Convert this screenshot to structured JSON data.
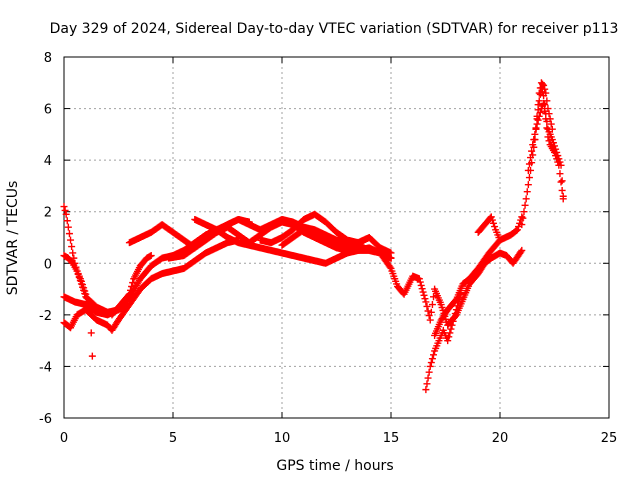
{
  "chart_data": {
    "type": "scatter",
    "title": "Day 329 of 2024, Sidereal Day-to-day VTEC variation (SDTVAR) for receiver p113",
    "xlabel": "GPS time / hours",
    "ylabel": "SDTVAR / TECUs",
    "xlim": [
      0,
      25
    ],
    "ylim": [
      -6,
      8
    ],
    "xticks": [
      0,
      5,
      10,
      15,
      20,
      25
    ],
    "yticks": [
      -6,
      -4,
      -2,
      0,
      2,
      4,
      6,
      8
    ],
    "grid": true,
    "marker": "+",
    "series": [
      {
        "name": "SDTVAR",
        "color": "#ff0000",
        "tracks": [
          {
            "x": [
              0.0,
              0.1,
              0.2,
              0.3,
              0.4,
              0.5,
              0.6,
              0.8,
              1.0,
              1.2,
              1.3
            ],
            "y": [
              2.2,
              1.9,
              1.4,
              0.9,
              0.4,
              0.0,
              -0.3,
              -0.7,
              -1.2,
              -1.8,
              -3.6
            ]
          },
          {
            "x": [
              0.0,
              0.2,
              0.4,
              0.6,
              0.8,
              1.0,
              1.5,
              2.0,
              2.5,
              2.9
            ],
            "y": [
              0.3,
              0.2,
              0.0,
              -0.3,
              -0.8,
              -1.3,
              -1.7,
              -1.9,
              -1.8,
              -1.6
            ]
          },
          {
            "x": [
              0.0,
              0.3,
              0.6,
              1.0,
              1.5,
              2.0,
              2.2,
              2.5,
              3.0,
              3.5,
              4.0,
              4.5,
              5.0,
              5.5,
              6.0,
              6.5,
              7.0,
              7.5,
              8.0
            ],
            "y": [
              -2.3,
              -2.5,
              -2.0,
              -1.8,
              -2.2,
              -2.4,
              -2.6,
              -2.2,
              -1.6,
              -1.0,
              -0.6,
              -0.4,
              -0.3,
              -0.2,
              0.1,
              0.4,
              0.6,
              0.8,
              0.9
            ]
          },
          {
            "x": [
              0.0,
              0.5,
              1.0,
              1.5,
              2.0,
              2.5,
              3.0,
              3.5,
              4.0,
              4.5,
              5.0,
              5.5,
              6.0,
              6.5,
              7.0,
              7.5,
              8.0,
              8.5
            ],
            "y": [
              -1.3,
              -1.5,
              -1.6,
              -1.9,
              -2.0,
              -1.8,
              -1.3,
              -0.6,
              -0.1,
              0.2,
              0.3,
              0.5,
              0.8,
              1.1,
              1.3,
              1.5,
              1.7,
              1.6
            ]
          },
          {
            "x": [
              2.2,
              2.6,
              3.0,
              3.2,
              3.5,
              3.8,
              4.0
            ],
            "y": [
              -2.0,
              -1.6,
              -1.2,
              -0.6,
              -0.1,
              0.2,
              0.3
            ]
          },
          {
            "x": [
              3.0,
              3.5,
              4.0,
              4.5,
              5.0,
              5.5,
              6.0,
              6.5,
              7.0,
              7.5,
              8.0,
              8.5,
              9.0,
              9.5,
              10.0,
              10.5,
              11.0,
              11.5,
              12.0,
              12.5,
              13.0,
              13.5,
              14.0,
              14.5,
              15.0
            ],
            "y": [
              0.8,
              1.0,
              1.2,
              1.5,
              1.2,
              0.9,
              0.6,
              0.9,
              1.2,
              1.4,
              1.1,
              0.8,
              1.1,
              1.4,
              1.6,
              1.5,
              1.2,
              1.0,
              0.8,
              0.6,
              0.5,
              0.5,
              0.5,
              0.4,
              0.2
            ]
          },
          {
            "x": [
              4.8,
              5.5,
              6.0,
              6.5,
              7.0,
              7.5,
              8.0,
              8.5,
              9.0,
              9.5,
              10.0,
              10.5,
              11.0,
              11.5,
              12.0,
              12.5,
              13.0,
              13.5,
              14.0,
              14.5,
              15.0
            ],
            "y": [
              0.2,
              0.3,
              0.6,
              0.9,
              1.2,
              1.5,
              1.7,
              1.5,
              1.3,
              1.5,
              1.7,
              1.6,
              1.4,
              1.3,
              1.1,
              0.9,
              0.8,
              0.7,
              0.5,
              0.4,
              0.2
            ]
          },
          {
            "x": [
              6.0,
              6.5,
              7.0,
              7.5,
              8.0,
              8.5,
              9.0,
              9.5,
              10.0,
              10.5,
              11.0,
              11.5,
              12.0,
              12.5,
              13.0,
              13.5,
              14.0,
              14.5,
              15.0
            ],
            "y": [
              1.7,
              1.5,
              1.3,
              1.0,
              0.8,
              0.7,
              0.6,
              0.5,
              0.4,
              0.3,
              0.2,
              0.1,
              0.0,
              0.2,
              0.4,
              0.5,
              0.6,
              0.4,
              0.2
            ]
          },
          {
            "x": [
              9.0,
              9.5,
              10.0,
              10.5,
              11.0,
              11.5,
              12.0,
              12.5,
              13.0,
              13.5,
              14.0,
              14.5,
              15.0
            ],
            "y": [
              0.9,
              0.8,
              1.0,
              1.3,
              1.7,
              1.9,
              1.6,
              1.2,
              0.9,
              0.8,
              1.0,
              0.6,
              0.4
            ]
          },
          {
            "x": [
              10.0,
              10.5,
              11.0,
              11.5,
              12.0,
              12.5,
              13.0,
              13.5,
              14.0
            ],
            "y": [
              0.7,
              1.0,
              1.3,
              1.2,
              0.9,
              0.7,
              0.6,
              0.8,
              1.0
            ]
          },
          {
            "x": [
              14.5,
              15.0,
              15.3,
              15.6,
              16.0,
              16.3,
              16.6,
              16.8,
              17.0,
              17.3,
              17.6,
              18.0,
              18.3,
              18.6,
              19.0,
              19.3,
              19.6,
              20.0,
              20.3,
              20.6,
              21.0
            ],
            "y": [
              0.4,
              -0.2,
              -0.9,
              -1.2,
              -0.5,
              -0.6,
              -1.5,
              -2.2,
              -1.0,
              -1.6,
              -2.4,
              -2.0,
              -1.4,
              -0.8,
              -0.4,
              0.0,
              0.2,
              0.4,
              0.3,
              0.0,
              0.5
            ]
          },
          {
            "x": [
              16.6,
              16.8,
              17.0,
              17.2,
              17.4,
              17.6,
              17.8,
              18.0,
              18.2
            ],
            "y": [
              -4.9,
              -4.0,
              -3.4,
              -3.0,
              -2.6,
              -3.0,
              -2.4,
              -1.8,
              -1.2
            ]
          },
          {
            "x": [
              17.0,
              17.3,
              17.6,
              18.0,
              18.3,
              18.6,
              19.0,
              19.5,
              20.0,
              20.5,
              20.8,
              21.0
            ],
            "y": [
              -2.8,
              -2.2,
              -1.8,
              -1.4,
              -0.8,
              -0.6,
              -0.2,
              0.4,
              0.9,
              1.1,
              1.3,
              1.8
            ]
          },
          {
            "x": [
              19.0,
              19.3,
              19.6,
              19.8,
              20.0
            ],
            "y": [
              1.2,
              1.5,
              1.8,
              1.3,
              0.9
            ]
          },
          {
            "x": [
              21.0,
              21.2,
              21.4,
              21.6,
              21.7,
              21.8,
              21.9,
              22.0,
              22.1,
              22.2,
              22.4,
              22.6,
              22.8,
              22.9
            ],
            "y": [
              1.5,
              2.5,
              3.6,
              4.8,
              5.6,
              6.3,
              6.8,
              6.5,
              5.8,
              5.2,
              4.8,
              4.3,
              3.8,
              2.6
            ]
          },
          {
            "x": [
              21.3,
              21.5,
              21.7,
              21.9,
              22.0,
              22.1,
              22.2,
              22.3,
              22.5,
              22.7,
              22.9
            ],
            "y": [
              3.6,
              4.6,
              5.4,
              6.0,
              6.2,
              5.6,
              4.9,
              4.6,
              4.3,
              3.8,
              2.5
            ]
          },
          {
            "x": [
              21.6,
              21.8,
              21.9,
              22.0,
              22.1,
              22.2,
              22.4
            ],
            "y": [
              4.8,
              6.6,
              7.0,
              6.9,
              6.6,
              6.0,
              5.2
            ]
          }
        ]
      }
    ]
  }
}
